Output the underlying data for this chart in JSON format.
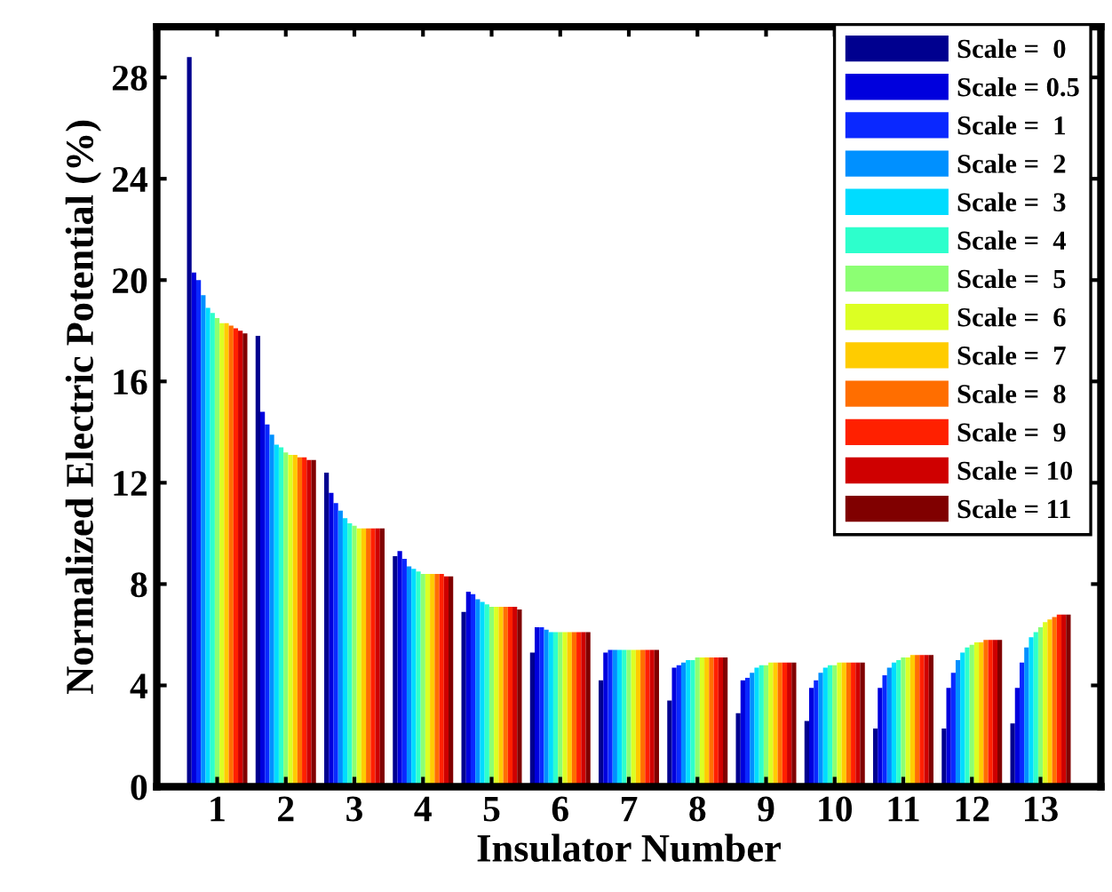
{
  "chart_data": {
    "type": "bar",
    "xlabel": "Insulator Number",
    "ylabel": "Normalized Electric Potential (%)",
    "categories": [
      "1",
      "2",
      "3",
      "4",
      "5",
      "6",
      "7",
      "8",
      "9",
      "10",
      "11",
      "12",
      "13"
    ],
    "ylim": [
      0,
      30
    ],
    "yticks": [
      0,
      4,
      8,
      12,
      16,
      20,
      24,
      28
    ],
    "grid": false,
    "legend": "top right",
    "series": [
      {
        "name": "Scale =  0",
        "color": "#00008f",
        "values": [
          28.8,
          17.8,
          12.4,
          9.1,
          6.9,
          5.3,
          4.2,
          3.4,
          2.9,
          2.6,
          2.3,
          2.3,
          2.5
        ]
      },
      {
        "name": "Scale = 0.5",
        "color": "#0000dd",
        "values": [
          20.3,
          14.8,
          11.6,
          9.3,
          7.7,
          6.3,
          5.3,
          4.7,
          4.2,
          3.9,
          3.9,
          3.9,
          3.9
        ]
      },
      {
        "name": "Scale =  1",
        "color": "#0a28ff",
        "values": [
          20.0,
          14.3,
          11.2,
          9.0,
          7.6,
          6.3,
          5.4,
          4.8,
          4.3,
          4.2,
          4.4,
          4.5,
          4.9
        ]
      },
      {
        "name": "Scale =  2",
        "color": "#0090ff",
        "values": [
          19.4,
          13.9,
          10.9,
          8.7,
          7.4,
          6.2,
          5.4,
          4.9,
          4.5,
          4.5,
          4.7,
          5.0,
          5.5
        ]
      },
      {
        "name": "Scale =  3",
        "color": "#00dcff",
        "values": [
          18.9,
          13.5,
          10.6,
          8.6,
          7.3,
          6.1,
          5.4,
          5.0,
          4.7,
          4.7,
          4.9,
          5.3,
          5.9
        ]
      },
      {
        "name": "Scale =  4",
        "color": "#2dffcc",
        "values": [
          18.7,
          13.4,
          10.4,
          8.5,
          7.2,
          6.1,
          5.4,
          5.0,
          4.8,
          4.8,
          5.0,
          5.5,
          6.1
        ]
      },
      {
        "name": "Scale =  5",
        "color": "#8cff73",
        "values": [
          18.5,
          13.2,
          10.3,
          8.4,
          7.1,
          6.1,
          5.4,
          5.1,
          4.8,
          4.8,
          5.1,
          5.6,
          6.3
        ]
      },
      {
        "name": "Scale =  6",
        "color": "#dcff23",
        "values": [
          18.3,
          13.1,
          10.2,
          8.4,
          7.1,
          6.1,
          5.4,
          5.1,
          4.9,
          4.9,
          5.1,
          5.7,
          6.5
        ]
      },
      {
        "name": "Scale =  7",
        "color": "#ffcc00",
        "values": [
          18.3,
          13.1,
          10.2,
          8.4,
          7.1,
          6.1,
          5.4,
          5.1,
          4.9,
          4.9,
          5.2,
          5.7,
          6.6
        ]
      },
      {
        "name": "Scale =  8",
        "color": "#ff6e00",
        "values": [
          18.2,
          13.0,
          10.2,
          8.4,
          7.1,
          6.1,
          5.4,
          5.1,
          4.9,
          4.9,
          5.2,
          5.8,
          6.7
        ]
      },
      {
        "name": "Scale =  9",
        "color": "#ff2000",
        "values": [
          18.1,
          13.0,
          10.2,
          8.4,
          7.1,
          6.1,
          5.4,
          5.1,
          4.9,
          4.9,
          5.2,
          5.8,
          6.8
        ]
      },
      {
        "name": "Scale = 10",
        "color": "#cf0000",
        "values": [
          18.0,
          12.9,
          10.2,
          8.3,
          7.1,
          6.1,
          5.4,
          5.1,
          4.9,
          4.9,
          5.2,
          5.8,
          6.8
        ]
      },
      {
        "name": "Scale = 11",
        "color": "#800000",
        "values": [
          17.9,
          12.9,
          10.2,
          8.3,
          7.0,
          6.1,
          5.4,
          5.1,
          4.9,
          4.9,
          5.2,
          5.8,
          6.8
        ]
      }
    ]
  }
}
